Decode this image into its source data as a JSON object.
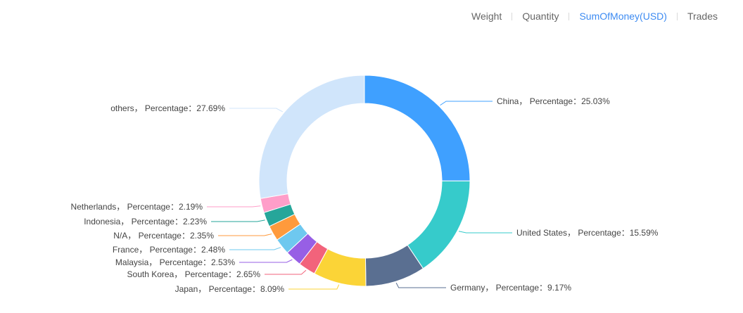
{
  "tabs": [
    {
      "label": "Weight",
      "active": false
    },
    {
      "label": "Quantity",
      "active": false
    },
    {
      "label": "SumOfMoney(USD)",
      "active": true
    },
    {
      "label": "Trades",
      "active": false
    }
  ],
  "chart_data": {
    "type": "pie",
    "variant": "donut",
    "label_format": "{name}， Percentage：{value}%",
    "slices": [
      {
        "name": "China",
        "value": 25.03,
        "color": "#3fa0ff"
      },
      {
        "name": "United States",
        "value": 15.59,
        "color": "#36cbcb"
      },
      {
        "name": "Germany",
        "value": 9.17,
        "color": "#5a6f91"
      },
      {
        "name": "Japan",
        "value": 8.09,
        "color": "#fbd437"
      },
      {
        "name": "South Korea",
        "value": 2.65,
        "color": "#f2637b"
      },
      {
        "name": "Malaysia",
        "value": 2.53,
        "color": "#975fe5"
      },
      {
        "name": "France",
        "value": 2.48,
        "color": "#6ec8ef"
      },
      {
        "name": "N/A",
        "value": 2.35,
        "color": "#ff9a3c"
      },
      {
        "name": "Indonesia",
        "value": 2.23,
        "color": "#26a69a"
      },
      {
        "name": "Netherlands",
        "value": 2.19,
        "color": "#ff9ec9"
      },
      {
        "name": "others",
        "value": 27.69,
        "color": "#d0e5fb"
      }
    ]
  }
}
